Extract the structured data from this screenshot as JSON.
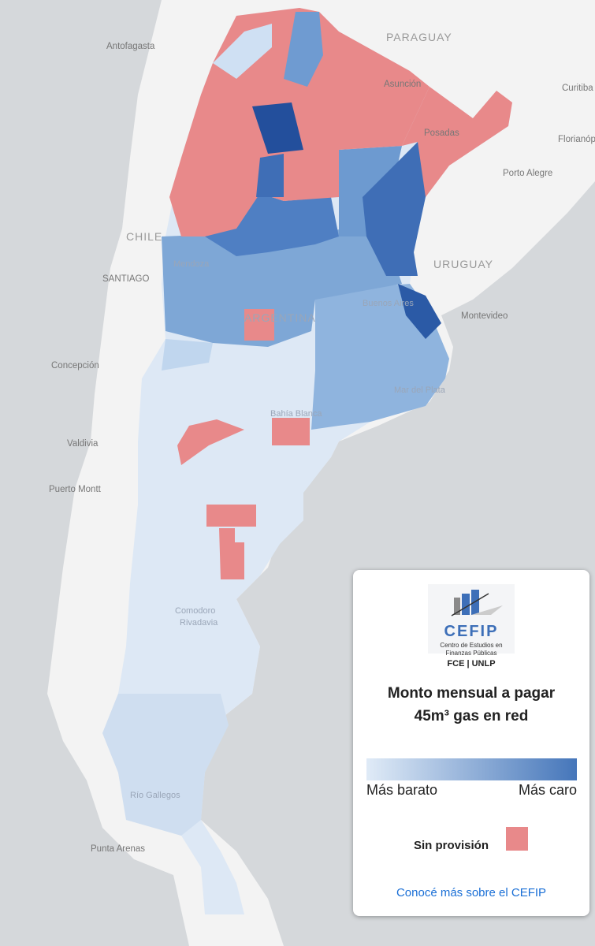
{
  "map": {
    "labels": {
      "antofagasta": "Antofagasta",
      "paraguay": "PARAGUAY",
      "asuncion": "Asunción",
      "curitiba": "Curitiba",
      "florianopolis": "Florianópolis",
      "posadas": "Posadas",
      "porto_alegre": "Porto Alegre",
      "chile": "CHILE",
      "santiago": "SANTIAGO",
      "mendoza": "Mendoza",
      "uruguay": "URUGUAY",
      "montevideo": "Montevideo",
      "buenos_aires": "Buenos Aires",
      "argentina": "ARGENTINA",
      "concepcion": "Concepción",
      "bahia_blanca": "Bahía Blanca",
      "mar_del_plata": "Mar del Plata",
      "valdivia": "Valdivia",
      "puerto_montt": "Puerto Montt",
      "comodoro": "Comodoro",
      "rivadavia": "Rivadavia",
      "rio_gallegos": "Río Gallegos",
      "punta_arenas": "Punta Arenas"
    }
  },
  "legend": {
    "logo": {
      "name": "CEFIP",
      "line1": "Centro de Estudios en",
      "line2": "Finanzas Públicas",
      "line3": "FCE | UNLP"
    },
    "title_line1": "Monto mensual a pagar",
    "title_line2": "45m³ gas en red",
    "low": "Más barato",
    "high": "Más caro",
    "no_supply": "Sin provisión",
    "link": "Conocé más sobre el CEFIP"
  }
}
